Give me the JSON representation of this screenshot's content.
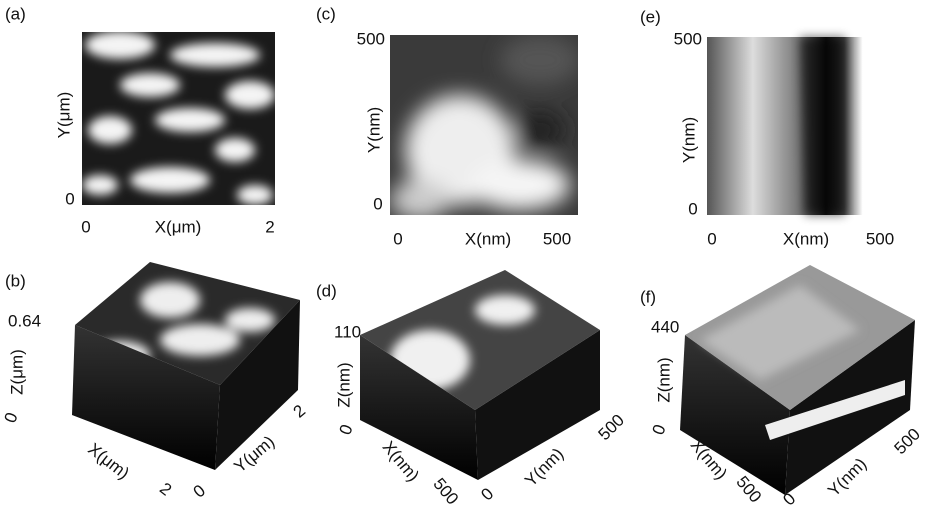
{
  "panels": {
    "a": {
      "label": "(a)",
      "y_axis": "Y(μm)",
      "y_min": "0",
      "x_axis": "X(μm)",
      "x_min": "0",
      "x_max": "2"
    },
    "c": {
      "label": "(c)",
      "y_axis": "Y(nm)",
      "y_max": "500",
      "y_min": "0",
      "x_axis": "X(nm)",
      "x_min": "0",
      "x_max": "500"
    },
    "e": {
      "label": "(e)",
      "y_axis": "Y(nm)",
      "y_max": "500",
      "y_min": "0",
      "x_axis": "X(nm)",
      "x_min": "0",
      "x_max": "500"
    },
    "b": {
      "label": "(b)",
      "z_max": "0.64",
      "z_axis": "Z(μm)",
      "z_min": "0",
      "x_axis": "X(μm)",
      "x_max": "2",
      "y_min": "0",
      "y_axis": "Y(μm)",
      "y_max": "2"
    },
    "d": {
      "label": "(d)",
      "z_max": "110",
      "z_axis": "Z(nm)",
      "z_min": "0",
      "x_axis": "X(nm)",
      "x_max": "500",
      "y_min": "0",
      "y_axis": "Y(nm)",
      "y_max": "500"
    },
    "f": {
      "label": "(f)",
      "z_max": "440",
      "z_axis": "Z(nm)",
      "z_min": "0",
      "x_axis": "X(nm)",
      "x_max": "500",
      "y_min": "0",
      "y_axis": "Y(nm)",
      "y_max": "500"
    }
  }
}
